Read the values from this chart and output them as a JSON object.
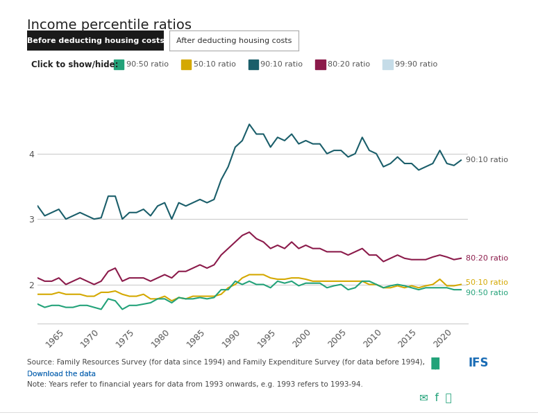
{
  "title": "Income percentile ratios",
  "btn1": "Before deducting housing costs",
  "btn2": "After deducting housing costs",
  "legend_text": "Click to show/hide:",
  "legend_items": [
    {
      "label": "90:50 ratio",
      "color": "#22a279"
    },
    {
      "label": "50:10 ratio",
      "color": "#d4a800"
    },
    {
      "label": "90:10 ratio",
      "color": "#1a5e6a"
    },
    {
      "label": "80:20 ratio",
      "color": "#8b1a4a"
    },
    {
      "label": "99:90 ratio",
      "color": "#c5dce8"
    }
  ],
  "series": {
    "90:10": {
      "color": "#1a5e6a",
      "label": "90:10 ratio",
      "years": [
        1961,
        1962,
        1963,
        1964,
        1965,
        1966,
        1967,
        1968,
        1969,
        1970,
        1971,
        1972,
        1973,
        1974,
        1975,
        1976,
        1977,
        1978,
        1979,
        1980,
        1981,
        1982,
        1983,
        1984,
        1985,
        1986,
        1987,
        1988,
        1989,
        1990,
        1991,
        1992,
        1993,
        1994,
        1995,
        1996,
        1997,
        1998,
        1999,
        2000,
        2001,
        2002,
        2003,
        2004,
        2005,
        2006,
        2007,
        2008,
        2009,
        2010,
        2011,
        2012,
        2013,
        2014,
        2015,
        2016,
        2017,
        2018,
        2019,
        2020,
        2021,
        2022
      ],
      "values": [
        3.2,
        3.05,
        3.1,
        3.15,
        3.0,
        3.05,
        3.1,
        3.05,
        3.0,
        3.02,
        3.35,
        3.35,
        3.0,
        3.1,
        3.1,
        3.15,
        3.05,
        3.2,
        3.25,
        3.0,
        3.25,
        3.2,
        3.25,
        3.3,
        3.25,
        3.3,
        3.6,
        3.8,
        4.1,
        4.2,
        4.45,
        4.3,
        4.3,
        4.1,
        4.25,
        4.2,
        4.3,
        4.15,
        4.2,
        4.15,
        4.15,
        4.0,
        4.05,
        4.05,
        3.95,
        4.0,
        4.25,
        4.05,
        4.0,
        3.8,
        3.85,
        3.95,
        3.85,
        3.85,
        3.75,
        3.8,
        3.85,
        4.05,
        3.85,
        3.82,
        3.9,
        null
      ]
    },
    "80:20": {
      "color": "#8b1a4a",
      "label": "80:20 ratio",
      "years": [
        1961,
        1962,
        1963,
        1964,
        1965,
        1966,
        1967,
        1968,
        1969,
        1970,
        1971,
        1972,
        1973,
        1974,
        1975,
        1976,
        1977,
        1978,
        1979,
        1980,
        1981,
        1982,
        1983,
        1984,
        1985,
        1986,
        1987,
        1988,
        1989,
        1990,
        1991,
        1992,
        1993,
        1994,
        1995,
        1996,
        1997,
        1998,
        1999,
        2000,
        2001,
        2002,
        2003,
        2004,
        2005,
        2006,
        2007,
        2008,
        2009,
        2010,
        2011,
        2012,
        2013,
        2014,
        2015,
        2016,
        2017,
        2018,
        2019,
        2020,
        2021,
        2022
      ],
      "values": [
        2.1,
        2.05,
        2.05,
        2.1,
        2.0,
        2.05,
        2.1,
        2.05,
        2.0,
        2.05,
        2.2,
        2.25,
        2.05,
        2.1,
        2.1,
        2.1,
        2.05,
        2.1,
        2.15,
        2.1,
        2.2,
        2.2,
        2.25,
        2.3,
        2.25,
        2.3,
        2.45,
        2.55,
        2.65,
        2.75,
        2.8,
        2.7,
        2.65,
        2.55,
        2.6,
        2.55,
        2.65,
        2.55,
        2.6,
        2.55,
        2.55,
        2.5,
        2.5,
        2.5,
        2.45,
        2.5,
        2.55,
        2.45,
        2.45,
        2.35,
        2.4,
        2.45,
        2.4,
        2.38,
        2.38,
        2.38,
        2.42,
        2.45,
        2.42,
        2.38,
        2.4,
        null
      ]
    },
    "50:10": {
      "color": "#d4a800",
      "label": "50:10 ratio",
      "years": [
        1961,
        1962,
        1963,
        1964,
        1965,
        1966,
        1967,
        1968,
        1969,
        1970,
        1971,
        1972,
        1973,
        1974,
        1975,
        1976,
        1977,
        1978,
        1979,
        1980,
        1981,
        1982,
        1983,
        1984,
        1985,
        1986,
        1987,
        1988,
        1989,
        1990,
        1991,
        1992,
        1993,
        1994,
        1995,
        1996,
        1997,
        1998,
        1999,
        2000,
        2001,
        2002,
        2003,
        2004,
        2005,
        2006,
        2007,
        2008,
        2009,
        2010,
        2011,
        2012,
        2013,
        2014,
        2015,
        2016,
        2017,
        2018,
        2019,
        2020,
        2021,
        2022
      ],
      "values": [
        1.85,
        1.85,
        1.85,
        1.88,
        1.85,
        1.85,
        1.85,
        1.82,
        1.82,
        1.88,
        1.88,
        1.9,
        1.85,
        1.82,
        1.82,
        1.85,
        1.78,
        1.78,
        1.82,
        1.75,
        1.8,
        1.78,
        1.82,
        1.82,
        1.82,
        1.82,
        1.85,
        1.95,
        2.0,
        2.1,
        2.15,
        2.15,
        2.15,
        2.1,
        2.08,
        2.08,
        2.1,
        2.1,
        2.08,
        2.05,
        2.05,
        2.05,
        2.05,
        2.05,
        2.05,
        2.05,
        2.05,
        2.0,
        2.0,
        1.95,
        1.95,
        1.98,
        1.95,
        1.98,
        1.95,
        1.98,
        2.0,
        2.08,
        1.98,
        1.98,
        2.0,
        null
      ]
    },
    "90:50": {
      "color": "#22a279",
      "label": "90:50 ratio",
      "years": [
        1961,
        1962,
        1963,
        1964,
        1965,
        1966,
        1967,
        1968,
        1969,
        1970,
        1971,
        1972,
        1973,
        1974,
        1975,
        1976,
        1977,
        1978,
        1979,
        1980,
        1981,
        1982,
        1983,
        1984,
        1985,
        1986,
        1987,
        1988,
        1989,
        1990,
        1991,
        1992,
        1993,
        1994,
        1995,
        1996,
        1997,
        1998,
        1999,
        2000,
        2001,
        2002,
        2003,
        2004,
        2005,
        2006,
        2007,
        2008,
        2009,
        2010,
        2011,
        2012,
        2013,
        2014,
        2015,
        2016,
        2017,
        2018,
        2019,
        2020,
        2021,
        2022
      ],
      "values": [
        1.7,
        1.65,
        1.68,
        1.68,
        1.65,
        1.65,
        1.68,
        1.68,
        1.65,
        1.62,
        1.78,
        1.75,
        1.62,
        1.68,
        1.68,
        1.7,
        1.72,
        1.78,
        1.78,
        1.72,
        1.8,
        1.78,
        1.78,
        1.8,
        1.78,
        1.8,
        1.92,
        1.92,
        2.05,
        2.0,
        2.05,
        2.0,
        2.0,
        1.95,
        2.05,
        2.02,
        2.05,
        1.98,
        2.02,
        2.02,
        2.02,
        1.95,
        1.98,
        2.0,
        1.92,
        1.95,
        2.05,
        2.05,
        2.0,
        1.95,
        1.98,
        2.0,
        1.98,
        1.95,
        1.92,
        1.95,
        1.95,
        1.95,
        1.95,
        1.92,
        1.92,
        null
      ]
    }
  },
  "xlim": [
    1961,
    2022
  ],
  "ylim": [
    1.4,
    4.7
  ],
  "yticks": [
    2,
    3,
    4
  ],
  "xticks": [
    1965,
    1970,
    1975,
    1980,
    1985,
    1990,
    1995,
    2000,
    2005,
    2010,
    2015,
    2020
  ],
  "footer_line1": "Source: Family Resources Survey (for data since 1994) and Family Expenditure Survey (for data before 1994),",
  "footer_line2": "Download the data",
  "footer_line3": "Note: Years refer to financial years for data from 1993 onwards, e.g. 1993 refers to 1993-94.",
  "bg_color": "#ffffff",
  "plot_bg_color": "#ffffff",
  "grid_color": "#cccccc"
}
